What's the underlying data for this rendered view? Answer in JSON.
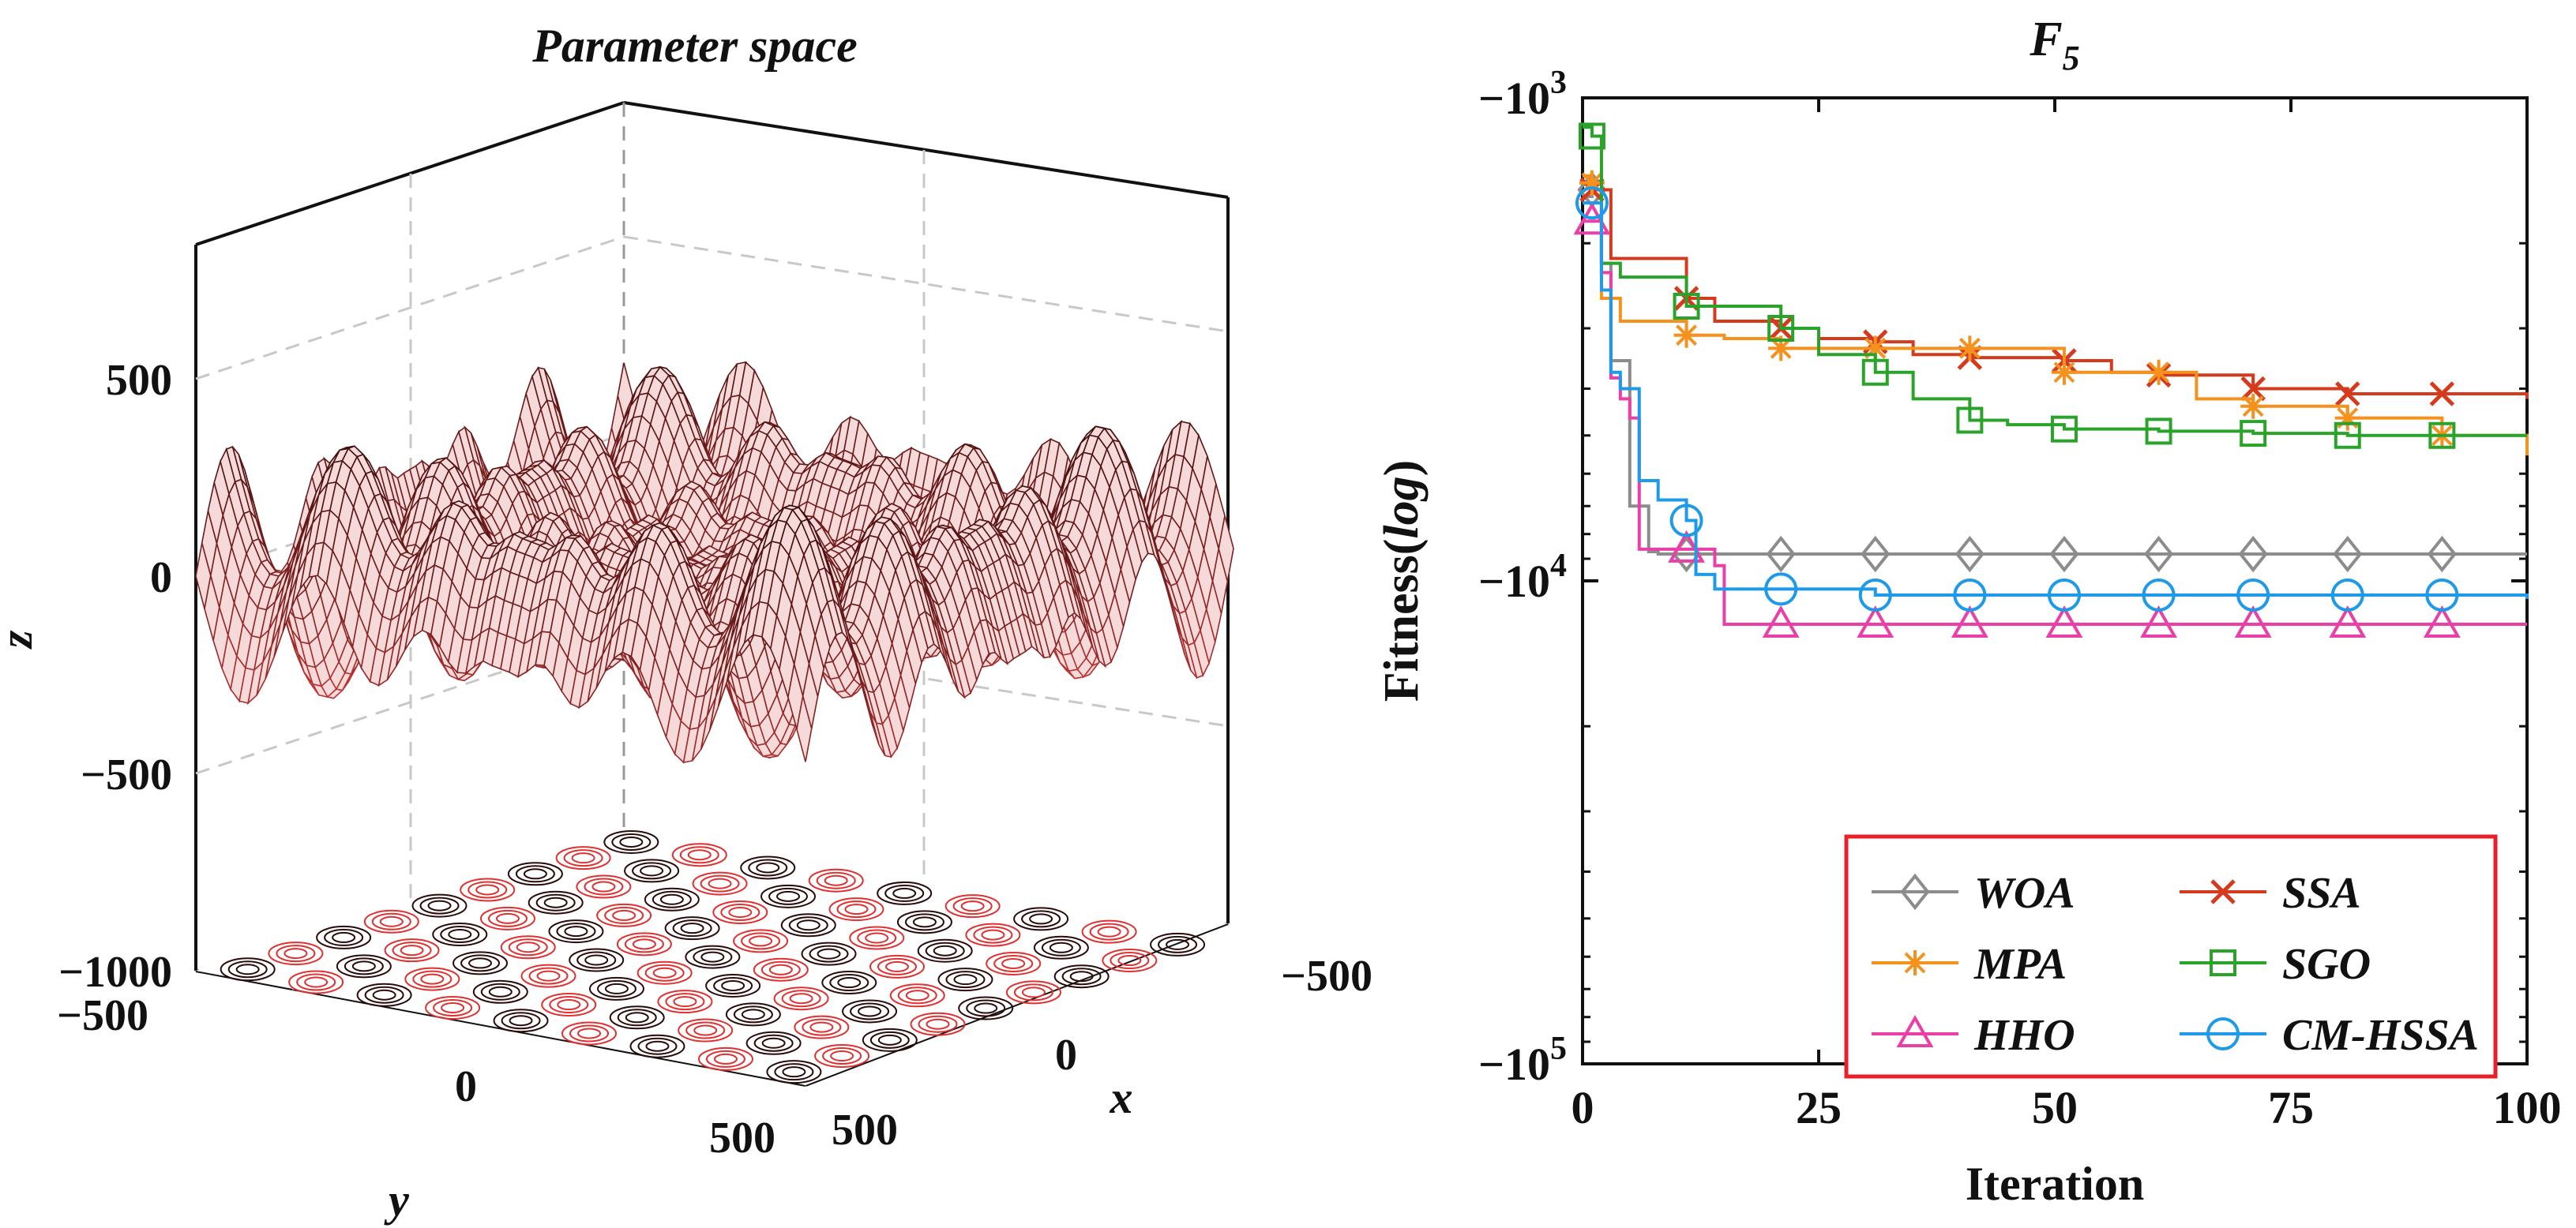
{
  "left_panel": {
    "title": "Parameter space",
    "z_label": "z",
    "y_label": "y",
    "x_label": "x",
    "z_ticks": [
      "500",
      "0",
      "−500",
      "−1000"
    ],
    "y_ticks": [
      "−500",
      "0",
      "500"
    ],
    "x_ticks": [
      "−500",
      "0",
      "500"
    ],
    "colors": {
      "top": "#2a0606",
      "mid": "#7a2020",
      "bottom": "#e04040",
      "contour_dark": "#2a0a0a",
      "contour_light": "#e03030"
    }
  },
  "chart_data": {
    "type": "line",
    "title": "F",
    "title_subscript": "5",
    "xlabel": "Iteration",
    "ylabel": "Fitness(log)",
    "ylabel_main": "Fitness(",
    "ylabel_italic": "log",
    "ylabel_close": ")",
    "xlim": [
      0,
      100
    ],
    "ylim_log10_magnitude": [
      3,
      5
    ],
    "y_scale": "log of negative values (−10^3 top, −10^5 bottom)",
    "x_ticks": [
      "0",
      "25",
      "50",
      "75",
      "100"
    ],
    "y_ticks": [
      {
        "base": "−10",
        "exp": "3"
      },
      {
        "base": "−10",
        "exp": "4"
      },
      {
        "base": "−10",
        "exp": "5"
      }
    ],
    "legend_position": "bottom-right",
    "series": [
      {
        "name": "WOA",
        "color": "#8c8c8c",
        "marker": "diamond",
        "x": [
          0,
          1,
          2,
          3,
          5,
          7,
          8,
          11,
          100
        ],
        "y": [
          -1600,
          -1550,
          -2200,
          -3500,
          -7000,
          -8700,
          -8800,
          -8800,
          -8800
        ]
      },
      {
        "name": "SSA",
        "color": "#d63a1c",
        "marker": "x",
        "x": [
          0,
          1,
          3,
          11,
          14,
          21,
          25,
          31,
          35,
          41,
          51,
          56,
          61,
          71,
          81,
          100
        ],
        "y": [
          -1500,
          -1550,
          -2150,
          -2600,
          -2900,
          -3000,
          -3150,
          -3200,
          -3400,
          -3450,
          -3500,
          -3700,
          -3750,
          -4000,
          -4100,
          -4200
        ]
      },
      {
        "name": "MPA",
        "color": "#f5921e",
        "marker": "asterisk",
        "x": [
          0,
          1,
          2,
          4,
          11,
          15,
          21,
          25,
          31,
          45,
          51,
          61,
          65,
          71,
          81,
          91,
          100
        ],
        "y": [
          -1450,
          -1500,
          -2600,
          -2900,
          -3100,
          -3150,
          -3300,
          -3300,
          -3300,
          -3300,
          -3700,
          -3700,
          -4200,
          -4350,
          -4600,
          -5000,
          -5500
        ]
      },
      {
        "name": "SGO",
        "color": "#2aa32a",
        "marker": "square",
        "x": [
          0,
          1,
          2,
          4,
          11,
          21,
          25,
          31,
          35,
          41,
          45,
          51,
          61,
          71,
          81,
          91,
          100
        ],
        "y": [
          -1150,
          -1200,
          -2200,
          -2350,
          -2700,
          -3000,
          -3400,
          -3700,
          -4200,
          -4650,
          -4750,
          -4850,
          -4900,
          -4950,
          -5000,
          -5000,
          -5000
        ]
      },
      {
        "name": "HHO",
        "color": "#ea3fa8",
        "marker": "triangle",
        "x": [
          0,
          1,
          2,
          3,
          4,
          5,
          6,
          11,
          14,
          15,
          21,
          100
        ],
        "y": [
          -1800,
          -1800,
          -2300,
          -3800,
          -4200,
          -4600,
          -8600,
          -8600,
          -9300,
          -12300,
          -12300,
          -12300
        ]
      },
      {
        "name": "CM-HSSA",
        "color": "#1e9ae8",
        "marker": "circle",
        "x": [
          0,
          1,
          2,
          3,
          4,
          6,
          8,
          11,
          12,
          14,
          21,
          31,
          100
        ],
        "y": [
          -1650,
          -1650,
          -2500,
          -3700,
          -4000,
          -6200,
          -6800,
          -7500,
          -9700,
          -10400,
          -10400,
          -10700,
          -10900
        ]
      }
    ]
  }
}
